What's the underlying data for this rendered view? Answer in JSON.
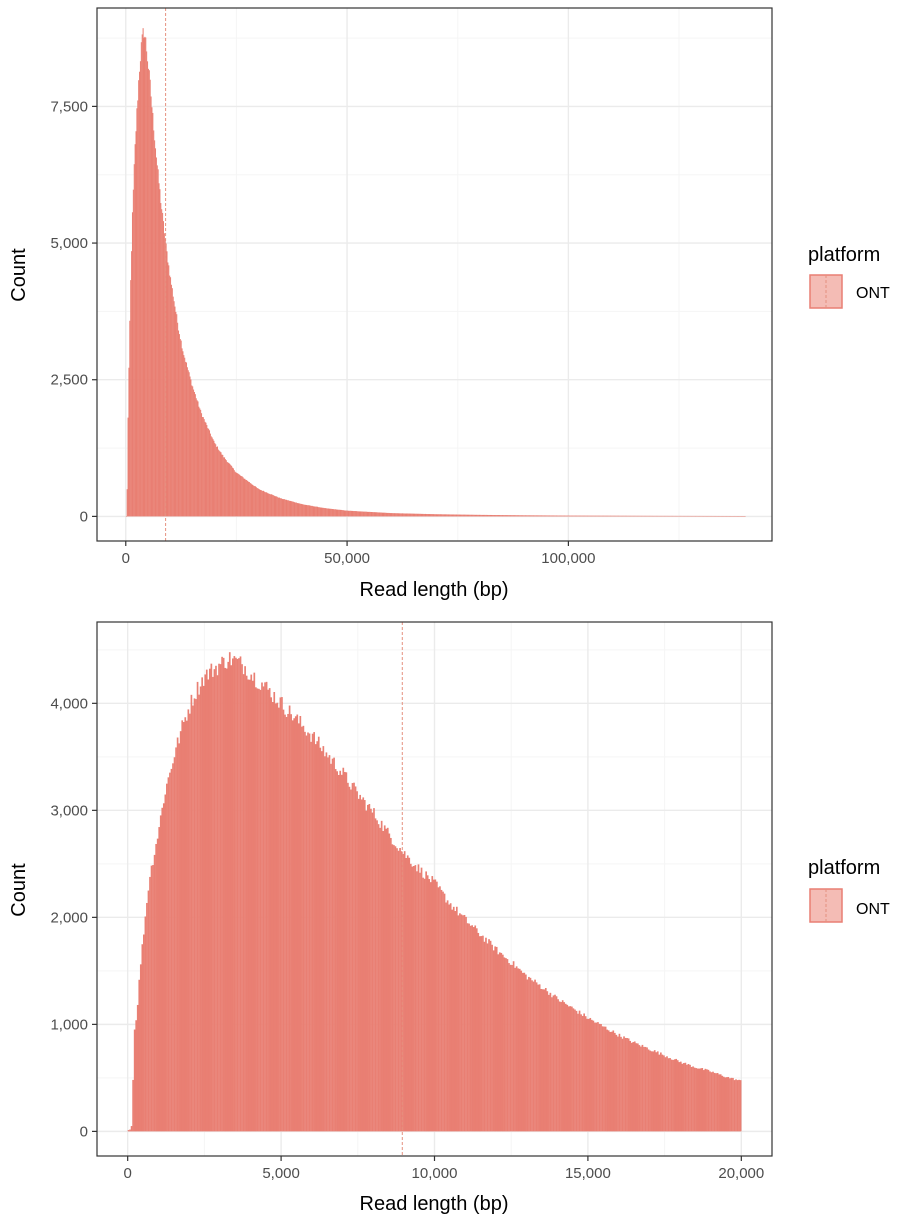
{
  "colors": {
    "fill": "#E97F73",
    "legend_fill": "#F4BCB5",
    "stroke": "#E97F73",
    "grid_major": "#EBEBEB",
    "grid_minor": "#F5F5F5",
    "panel_border": "#333333",
    "vline": "#E5917F"
  },
  "chart_data": [
    {
      "type": "bar",
      "subtype": "histogram",
      "title": "",
      "xlabel": "Read length (bp)",
      "ylabel": "Count",
      "xlim": [
        -6500,
        146000
      ],
      "ylim": [
        -450,
        9300
      ],
      "x_ticks": [
        0,
        50000,
        100000
      ],
      "x_tick_labels": [
        "0",
        "50,000",
        "100,000"
      ],
      "y_ticks": [
        0,
        2500,
        5000,
        7500
      ],
      "y_tick_labels": [
        "0",
        "2,500",
        "5,000",
        "7,500"
      ],
      "grid": true,
      "vline_x": 9000,
      "legend": {
        "title": "platform",
        "entries": [
          "ONT"
        ],
        "position": "right"
      },
      "profile": [
        [
          0,
          0
        ],
        [
          250,
          0
        ],
        [
          300,
          500
        ],
        [
          500,
          1800
        ],
        [
          1000,
          4000
        ],
        [
          1500,
          5500
        ],
        [
          2000,
          6600
        ],
        [
          2500,
          7400
        ],
        [
          3000,
          8100
        ],
        [
          3500,
          8600
        ],
        [
          4000,
          8900
        ],
        [
          4500,
          8700
        ],
        [
          5000,
          8300
        ],
        [
          5500,
          7900
        ],
        [
          6000,
          7400
        ],
        [
          7000,
          6500
        ],
        [
          8000,
          5700
        ],
        [
          9000,
          5000
        ],
        [
          10000,
          4400
        ],
        [
          11000,
          3900
        ],
        [
          12000,
          3400
        ],
        [
          13000,
          3000
        ],
        [
          14000,
          2700
        ],
        [
          15000,
          2400
        ],
        [
          17000,
          1900
        ],
        [
          20000,
          1350
        ],
        [
          22000,
          1100
        ],
        [
          25000,
          800
        ],
        [
          30000,
          500
        ],
        [
          35000,
          330
        ],
        [
          40000,
          220
        ],
        [
          45000,
          150
        ],
        [
          50000,
          105
        ],
        [
          60000,
          60
        ],
        [
          70000,
          40
        ],
        [
          80000,
          28
        ],
        [
          90000,
          20
        ],
        [
          100000,
          15
        ],
        [
          120000,
          10
        ],
        [
          140000,
          7
        ]
      ],
      "bin_width": 200,
      "x_max": 140000,
      "noise": 0.015
    },
    {
      "type": "bar",
      "subtype": "histogram",
      "title": "",
      "xlabel": "Read length (bp)",
      "ylabel": "Count",
      "xlim": [
        -1000,
        21000
      ],
      "ylim": [
        -230,
        4760
      ],
      "x_ticks": [
        0,
        5000,
        10000,
        15000,
        20000
      ],
      "x_tick_labels": [
        "0",
        "5,000",
        "10,000",
        "15,000",
        "20,000"
      ],
      "y_ticks": [
        0,
        1000,
        2000,
        3000,
        4000
      ],
      "y_tick_labels": [
        "0",
        "1,000",
        "2,000",
        "3,000",
        "4,000"
      ],
      "grid": true,
      "vline_x": 8950,
      "legend": {
        "title": "platform",
        "entries": [
          "ONT"
        ],
        "position": "right"
      },
      "profile": [
        [
          0,
          10
        ],
        [
          100,
          20
        ],
        [
          150,
          80
        ],
        [
          200,
          900
        ],
        [
          300,
          1100
        ],
        [
          400,
          1500
        ],
        [
          500,
          1800
        ],
        [
          700,
          2350
        ],
        [
          1000,
          2800
        ],
        [
          1200,
          3150
        ],
        [
          1500,
          3500
        ],
        [
          1800,
          3800
        ],
        [
          2000,
          3960
        ],
        [
          2200,
          4100
        ],
        [
          2500,
          4250
        ],
        [
          2800,
          4320
        ],
        [
          3000,
          4360
        ],
        [
          3300,
          4420
        ],
        [
          3500,
          4400
        ],
        [
          3800,
          4350
        ],
        [
          4000,
          4280
        ],
        [
          4500,
          4150
        ],
        [
          5000,
          4000
        ],
        [
          5500,
          3850
        ],
        [
          6000,
          3700
        ],
        [
          6500,
          3520
        ],
        [
          7000,
          3350
        ],
        [
          7500,
          3150
        ],
        [
          8000,
          2980
        ],
        [
          8500,
          2780
        ],
        [
          9000,
          2600
        ],
        [
          9500,
          2450
        ],
        [
          10000,
          2320
        ],
        [
          10500,
          2130
        ],
        [
          11000,
          1980
        ],
        [
          11500,
          1840
        ],
        [
          12000,
          1700
        ],
        [
          12500,
          1580
        ],
        [
          13000,
          1450
        ],
        [
          13500,
          1350
        ],
        [
          14000,
          1240
        ],
        [
          14500,
          1150
        ],
        [
          15000,
          1060
        ],
        [
          15500,
          980
        ],
        [
          16000,
          900
        ],
        [
          16500,
          830
        ],
        [
          17000,
          770
        ],
        [
          17500,
          710
        ],
        [
          18000,
          650
        ],
        [
          18500,
          600
        ],
        [
          19000,
          560
        ],
        [
          19500,
          510
        ],
        [
          20000,
          470
        ]
      ],
      "bin_width": 50,
      "x_max": 20000,
      "noise": 0.02
    }
  ]
}
